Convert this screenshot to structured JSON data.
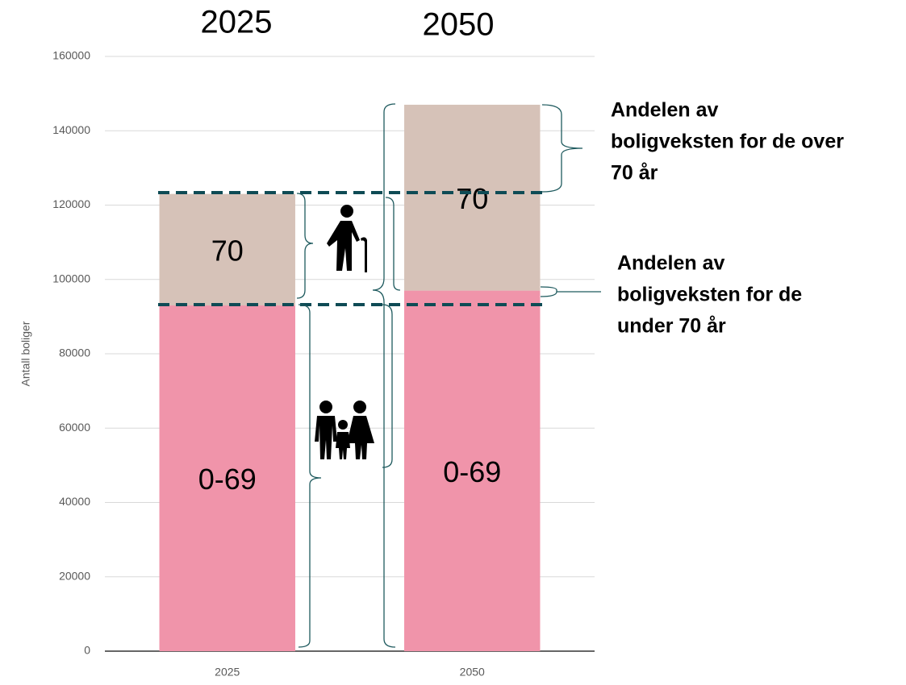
{
  "chart_data": {
    "type": "stacked-bar",
    "headers": [
      "2025",
      "2050"
    ],
    "y_label": "Antall boliger",
    "categories": [
      "2025",
      "2050"
    ],
    "series": [
      {
        "name": "0-69",
        "color": "#f094aa",
        "values": [
          93000,
          97000
        ]
      },
      {
        "name": "70",
        "color": "#d6c2b8",
        "values": [
          30000,
          50000
        ]
      }
    ],
    "ylim": [
      0,
      160000
    ],
    "yticks": [
      0,
      20000,
      40000,
      60000,
      80000,
      100000,
      120000,
      140000,
      160000
    ],
    "grid": true,
    "annotations": [
      [
        "Andelen av",
        "boligveksten for de over",
        "70 år"
      ],
      [
        "Andelen av",
        "boligveksten for de",
        "under 70 år"
      ]
    ]
  }
}
